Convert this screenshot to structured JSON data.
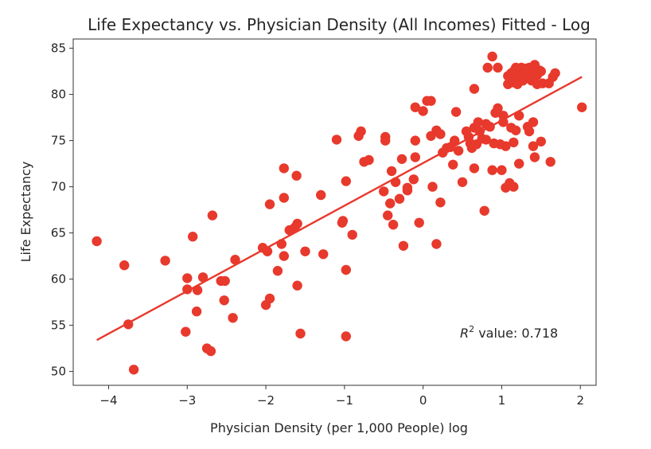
{
  "chart_data": {
    "type": "scatter",
    "title": "Life Expectancy vs. Physician Density (All Incomes) Fitted - Log",
    "xlabel": "Physician Density (per 1,000 People) log",
    "ylabel": "Life Expectancy",
    "xlim": [
      -4.45,
      2.2
    ],
    "ylim": [
      48.5,
      86.0
    ],
    "xticks": [
      -4,
      -3,
      -2,
      -1,
      0,
      1,
      2
    ],
    "xtick_labels": [
      "−4",
      "−3",
      "−2",
      "−1",
      "0",
      "1",
      "2"
    ],
    "yticks": [
      50,
      55,
      60,
      65,
      70,
      75,
      80,
      85
    ],
    "ytick_labels": [
      "50",
      "55",
      "60",
      "65",
      "70",
      "75",
      "80",
      "85"
    ],
    "grid": false,
    "annotation": {
      "r2_symbol": "R",
      "r2_sup": "2",
      "text": " value: 0.718"
    },
    "colors": {
      "points": "#e8392d",
      "fit_line": "#e8392d",
      "axes": "#333333"
    },
    "fit_line": {
      "x": [
        -4.15,
        2.02
      ],
      "y": [
        53.4,
        81.9
      ]
    },
    "points": [
      [
        -4.15,
        64.1
      ],
      [
        -3.8,
        61.5
      ],
      [
        -3.75,
        55.1
      ],
      [
        -3.68,
        50.2
      ],
      [
        -3.28,
        62.0
      ],
      [
        -3.0,
        60.1
      ],
      [
        -3.0,
        58.9
      ],
      [
        -3.02,
        54.3
      ],
      [
        -2.93,
        64.6
      ],
      [
        -2.88,
        56.5
      ],
      [
        -2.87,
        58.8
      ],
      [
        -2.8,
        60.2
      ],
      [
        -2.75,
        52.5
      ],
      [
        -2.7,
        52.2
      ],
      [
        -2.68,
        66.9
      ],
      [
        -2.57,
        59.8
      ],
      [
        -2.52,
        59.8
      ],
      [
        -2.53,
        57.7
      ],
      [
        -2.42,
        55.8
      ],
      [
        -2.39,
        62.1
      ],
      [
        -2.04,
        63.4
      ],
      [
        -2.0,
        57.2
      ],
      [
        -1.98,
        63.0
      ],
      [
        -1.95,
        57.9
      ],
      [
        -1.95,
        68.1
      ],
      [
        -1.85,
        60.9
      ],
      [
        -1.8,
        63.8
      ],
      [
        -1.77,
        62.5
      ],
      [
        -1.77,
        68.8
      ],
      [
        -1.77,
        72.0
      ],
      [
        -1.7,
        65.3
      ],
      [
        -1.63,
        65.6
      ],
      [
        -1.61,
        71.2
      ],
      [
        -1.6,
        59.3
      ],
      [
        -1.6,
        66.0
      ],
      [
        -1.56,
        54.1
      ],
      [
        -1.5,
        63.0
      ],
      [
        -1.3,
        69.1
      ],
      [
        -1.27,
        62.7
      ],
      [
        -1.1,
        75.1
      ],
      [
        -1.02,
        66.3
      ],
      [
        -1.03,
        66.1
      ],
      [
        -0.98,
        70.6
      ],
      [
        -0.98,
        53.8
      ],
      [
        -0.98,
        61.0
      ],
      [
        -0.9,
        64.8
      ],
      [
        -0.82,
        75.5
      ],
      [
        -0.79,
        76.0
      ],
      [
        -0.75,
        72.7
      ],
      [
        -0.69,
        72.9
      ],
      [
        -0.5,
        69.5
      ],
      [
        -0.48,
        75.0
      ],
      [
        -0.48,
        75.4
      ],
      [
        -0.45,
        66.9
      ],
      [
        -0.42,
        68.2
      ],
      [
        -0.4,
        71.7
      ],
      [
        -0.38,
        65.9
      ],
      [
        -0.35,
        70.5
      ],
      [
        -0.3,
        68.7
      ],
      [
        -0.25,
        63.6
      ],
      [
        -0.27,
        73.0
      ],
      [
        -0.2,
        69.6
      ],
      [
        -0.2,
        69.9
      ],
      [
        -0.12,
        70.8
      ],
      [
        -0.1,
        73.2
      ],
      [
        -0.1,
        75.0
      ],
      [
        -0.1,
        78.6
      ],
      [
        -0.05,
        66.1
      ],
      [
        0.0,
        78.2
      ],
      [
        0.05,
        79.3
      ],
      [
        0.1,
        75.5
      ],
      [
        0.1,
        79.3
      ],
      [
        0.12,
        70.0
      ],
      [
        0.17,
        63.8
      ],
      [
        0.17,
        76.1
      ],
      [
        0.22,
        75.7
      ],
      [
        0.22,
        68.3
      ],
      [
        0.25,
        73.7
      ],
      [
        0.3,
        74.2
      ],
      [
        0.35,
        74.3
      ],
      [
        0.38,
        72.4
      ],
      [
        0.4,
        75.0
      ],
      [
        0.42,
        78.1
      ],
      [
        0.45,
        73.9
      ],
      [
        0.5,
        70.5
      ],
      [
        0.55,
        76.0
      ],
      [
        0.58,
        75.4
      ],
      [
        0.6,
        74.7
      ],
      [
        0.62,
        74.2
      ],
      [
        0.65,
        76.4
      ],
      [
        0.65,
        72.0
      ],
      [
        0.65,
        80.6
      ],
      [
        0.68,
        74.6
      ],
      [
        0.7,
        77.0
      ],
      [
        0.72,
        76.0
      ],
      [
        0.75,
        75.2
      ],
      [
        0.78,
        67.4
      ],
      [
        0.8,
        76.8
      ],
      [
        0.8,
        75.1
      ],
      [
        0.82,
        82.9
      ],
      [
        0.85,
        76.5
      ],
      [
        0.88,
        71.8
      ],
      [
        0.88,
        84.1
      ],
      [
        0.9,
        74.7
      ],
      [
        0.92,
        78.0
      ],
      [
        0.95,
        82.9
      ],
      [
        0.95,
        78.5
      ],
      [
        0.98,
        74.6
      ],
      [
        1.0,
        71.8
      ],
      [
        1.02,
        77.7
      ],
      [
        1.02,
        77.0
      ],
      [
        1.05,
        74.4
      ],
      [
        1.05,
        69.9
      ],
      [
        1.08,
        81.1
      ],
      [
        1.08,
        82.0
      ],
      [
        1.1,
        70.4
      ],
      [
        1.1,
        81.8
      ],
      [
        1.12,
        82.3
      ],
      [
        1.12,
        76.4
      ],
      [
        1.15,
        70.0
      ],
      [
        1.15,
        74.8
      ],
      [
        1.15,
        82.5
      ],
      [
        1.15,
        81.3
      ],
      [
        1.18,
        82.9
      ],
      [
        1.18,
        76.1
      ],
      [
        1.2,
        81.6
      ],
      [
        1.2,
        81.1
      ],
      [
        1.22,
        72.5
      ],
      [
        1.22,
        77.7
      ],
      [
        1.25,
        82.5
      ],
      [
        1.25,
        82.9
      ],
      [
        1.27,
        81.5
      ],
      [
        1.28,
        82.4
      ],
      [
        1.3,
        82.0
      ],
      [
        1.3,
        82.8
      ],
      [
        1.33,
        76.5
      ],
      [
        1.35,
        76.0
      ],
      [
        1.35,
        82.9
      ],
      [
        1.35,
        81.9
      ],
      [
        1.38,
        81.5
      ],
      [
        1.4,
        74.4
      ],
      [
        1.4,
        77.0
      ],
      [
        1.4,
        82.5
      ],
      [
        1.42,
        83.2
      ],
      [
        1.42,
        73.2
      ],
      [
        1.45,
        81.1
      ],
      [
        1.45,
        82.1
      ],
      [
        1.48,
        82.6
      ],
      [
        1.5,
        74.9
      ],
      [
        1.5,
        82.5
      ],
      [
        1.52,
        81.2
      ],
      [
        1.6,
        81.2
      ],
      [
        1.62,
        72.7
      ],
      [
        1.65,
        81.9
      ],
      [
        1.68,
        82.3
      ],
      [
        2.02,
        78.6
      ]
    ]
  }
}
